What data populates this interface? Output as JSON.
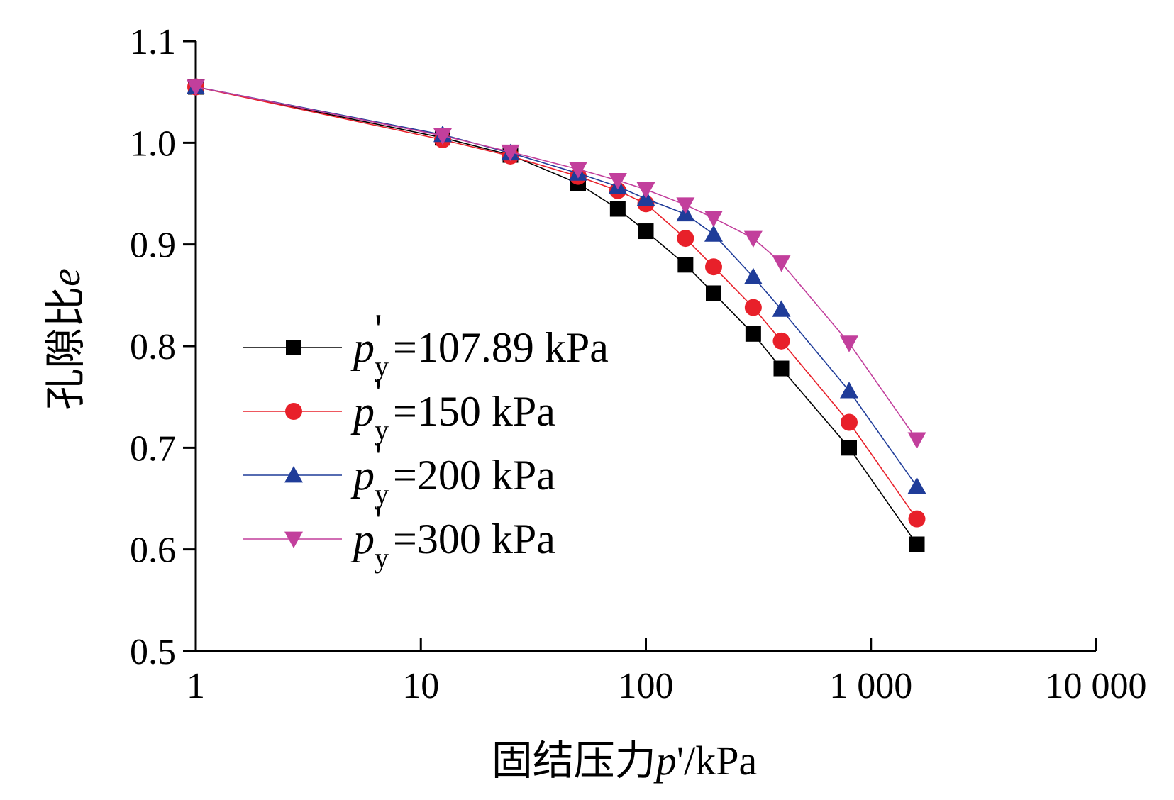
{
  "chart_data": {
    "type": "line",
    "xscale": "log",
    "xlim": [
      1,
      10000
    ],
    "ylim": [
      0.5,
      1.1
    ],
    "xlabel": "固结压力p'/kPa",
    "xlabel_parts": {
      "prefix": "固结压力",
      "var": "p",
      "suffix": "'/kPa"
    },
    "ylabel": "孔隙比e",
    "ylabel_parts": {
      "prefix": "孔隙比",
      "var": "e"
    },
    "xticks": [
      1,
      10,
      100,
      1000,
      10000
    ],
    "xtick_labels": [
      "1",
      "10",
      "100",
      "1 000",
      "10 000"
    ],
    "yticks": [
      0.5,
      0.6,
      0.7,
      0.8,
      0.9,
      1.0,
      1.1
    ],
    "ytick_labels": [
      "0.5",
      "0.6",
      "0.7",
      "0.8",
      "0.9",
      "1.0",
      "1.1"
    ],
    "legend_position": "center-left",
    "series": [
      {
        "name": "p'y=107.89 kPa",
        "label_var": "p",
        "label_prime": "'",
        "label_sub": "y",
        "label_rest": "=107.89 kPa",
        "color": "#000000",
        "marker": "square",
        "x": [
          1,
          12.5,
          25,
          50,
          75,
          100,
          150,
          200,
          300,
          400,
          800,
          1600
        ],
        "y": [
          1.055,
          1.005,
          0.988,
          0.96,
          0.935,
          0.913,
          0.88,
          0.852,
          0.812,
          0.778,
          0.7,
          0.605
        ]
      },
      {
        "name": "p'y=150 kPa",
        "label_var": "p",
        "label_prime": "'",
        "label_sub": "y",
        "label_rest": "=150 kPa",
        "color": "#e8202a",
        "marker": "circle",
        "x": [
          1,
          12.5,
          25,
          50,
          75,
          100,
          150,
          200,
          300,
          400,
          800,
          1600
        ],
        "y": [
          1.055,
          1.003,
          0.987,
          0.967,
          0.953,
          0.94,
          0.906,
          0.878,
          0.838,
          0.805,
          0.725,
          0.63
        ]
      },
      {
        "name": "p'y=200 kPa",
        "label_var": "p",
        "label_prime": "'",
        "label_sub": "y",
        "label_rest": "=200 kPa",
        "color": "#1f3c99",
        "marker": "triangle-up",
        "x": [
          1,
          12.5,
          25,
          50,
          75,
          100,
          150,
          200,
          300,
          400,
          800,
          1600
        ],
        "y": [
          1.055,
          1.008,
          0.99,
          0.97,
          0.957,
          0.945,
          0.93,
          0.91,
          0.868,
          0.836,
          0.756,
          0.662
        ]
      },
      {
        "name": "p'y=300 kPa",
        "label_var": "p",
        "label_prime": "'",
        "label_sub": "y",
        "label_rest": "=300 kPa",
        "color": "#c23f9c",
        "marker": "triangle-down",
        "x": [
          1,
          12.5,
          25,
          50,
          75,
          100,
          150,
          200,
          300,
          400,
          800,
          1600
        ],
        "y": [
          1.055,
          1.007,
          0.991,
          0.974,
          0.963,
          0.954,
          0.939,
          0.926,
          0.906,
          0.882,
          0.803,
          0.708
        ]
      }
    ]
  }
}
